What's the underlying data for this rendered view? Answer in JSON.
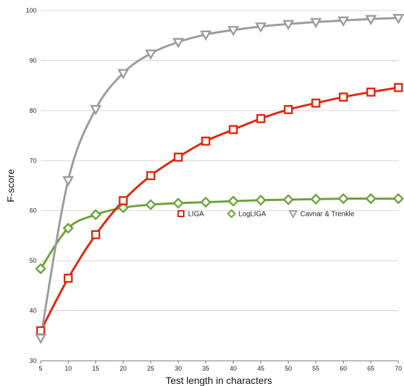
{
  "chart_data": {
    "type": "line",
    "xlabel": "Test length in characters",
    "ylabel": "F-score",
    "xlim": [
      5,
      70
    ],
    "ylim": [
      30,
      100
    ],
    "x_ticks": [
      "5",
      "10",
      "15",
      "20",
      "25",
      "30",
      "35",
      "40",
      "45",
      "50",
      "55",
      "60",
      "65",
      "70"
    ],
    "y_ticks": [
      "30",
      "40",
      "50",
      "60",
      "70",
      "80",
      "90",
      "100"
    ],
    "grid": "horizontal",
    "legend_position": "center-right",
    "x": [
      5,
      10,
      15,
      20,
      25,
      30,
      35,
      40,
      45,
      50,
      55,
      60,
      65,
      70
    ],
    "series": [
      {
        "name": "LIGA",
        "color": "#e0250e",
        "marker": "square",
        "values": [
          36.0,
          46.5,
          55.2,
          62.0,
          67.0,
          70.7,
          73.9,
          76.2,
          78.4,
          80.2,
          81.5,
          82.7,
          83.7,
          84.6
        ]
      },
      {
        "name": "LogLIGA",
        "color": "#6aa13a",
        "marker": "diamond",
        "values": [
          48.4,
          56.5,
          59.2,
          60.6,
          61.2,
          61.5,
          61.7,
          61.9,
          62.1,
          62.2,
          62.3,
          62.4,
          62.4,
          62.4
        ]
      },
      {
        "name": "Cavnar & Trenkle",
        "color": "#9b9b9b",
        "marker": "triangle-down",
        "values": [
          34.6,
          66.1,
          80.3,
          87.5,
          91.4,
          93.7,
          95.2,
          96.1,
          96.8,
          97.3,
          97.7,
          98.0,
          98.3,
          98.5
        ]
      }
    ]
  }
}
